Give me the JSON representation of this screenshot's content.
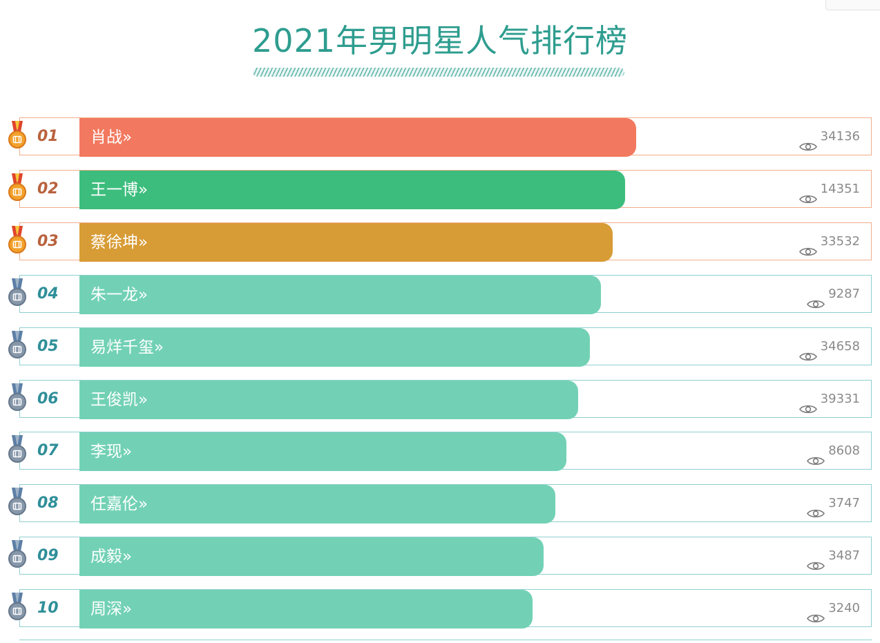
{
  "page": {
    "title": "2021年男明星人气排行榜"
  },
  "colors": {
    "title": "#2e9d8f",
    "rank1": "#f2795f",
    "rank2": "#3dbd7d",
    "rank3": "#d89c36",
    "rest": "#72d1b5",
    "gold_medal": "#f2a12b",
    "silver_medal": "#7c8fa4"
  },
  "ranking": [
    {
      "rank": "01",
      "name": "肖战",
      "arrow": "»",
      "views": "34136",
      "bar_color": "#f2795f",
      "medal": "gold-medal-icon",
      "fill_pct": 70.3
    },
    {
      "rank": "02",
      "name": "王一博",
      "arrow": "»",
      "views": "14351",
      "bar_color": "#3dbd7d",
      "medal": "gold-medal-icon",
      "fill_pct": 68.9
    },
    {
      "rank": "03",
      "name": "蔡徐坤",
      "arrow": "»",
      "views": "33532",
      "bar_color": "#d89c36",
      "medal": "gold-medal-icon",
      "fill_pct": 67.4
    },
    {
      "rank": "04",
      "name": "朱一龙",
      "arrow": "»",
      "views": "9287",
      "bar_color": "#72d1b5",
      "medal": "silver-medal-icon",
      "fill_pct": 65.9
    },
    {
      "rank": "05",
      "name": "易烊千玺",
      "arrow": "»",
      "views": "34658",
      "bar_color": "#72d1b5",
      "medal": "silver-medal-icon",
      "fill_pct": 64.5
    },
    {
      "rank": "06",
      "name": "王俊凯",
      "arrow": "»",
      "views": "39331",
      "bar_color": "#72d1b5",
      "medal": "silver-medal-icon",
      "fill_pct": 63.0
    },
    {
      "rank": "07",
      "name": "李现",
      "arrow": "»",
      "views": "8608",
      "bar_color": "#72d1b5",
      "medal": "silver-medal-icon",
      "fill_pct": 61.5
    },
    {
      "rank": "08",
      "name": "任嘉伦",
      "arrow": "»",
      "views": "3747",
      "bar_color": "#72d1b5",
      "medal": "silver-medal-icon",
      "fill_pct": 60.1
    },
    {
      "rank": "09",
      "name": "成毅",
      "arrow": "»",
      "views": "3487",
      "bar_color": "#72d1b5",
      "medal": "silver-medal-icon",
      "fill_pct": 58.6
    },
    {
      "rank": "10",
      "name": "周深",
      "arrow": "»",
      "views": "3240",
      "bar_color": "#72d1b5",
      "medal": "silver-medal-icon",
      "fill_pct": 57.2
    }
  ]
}
